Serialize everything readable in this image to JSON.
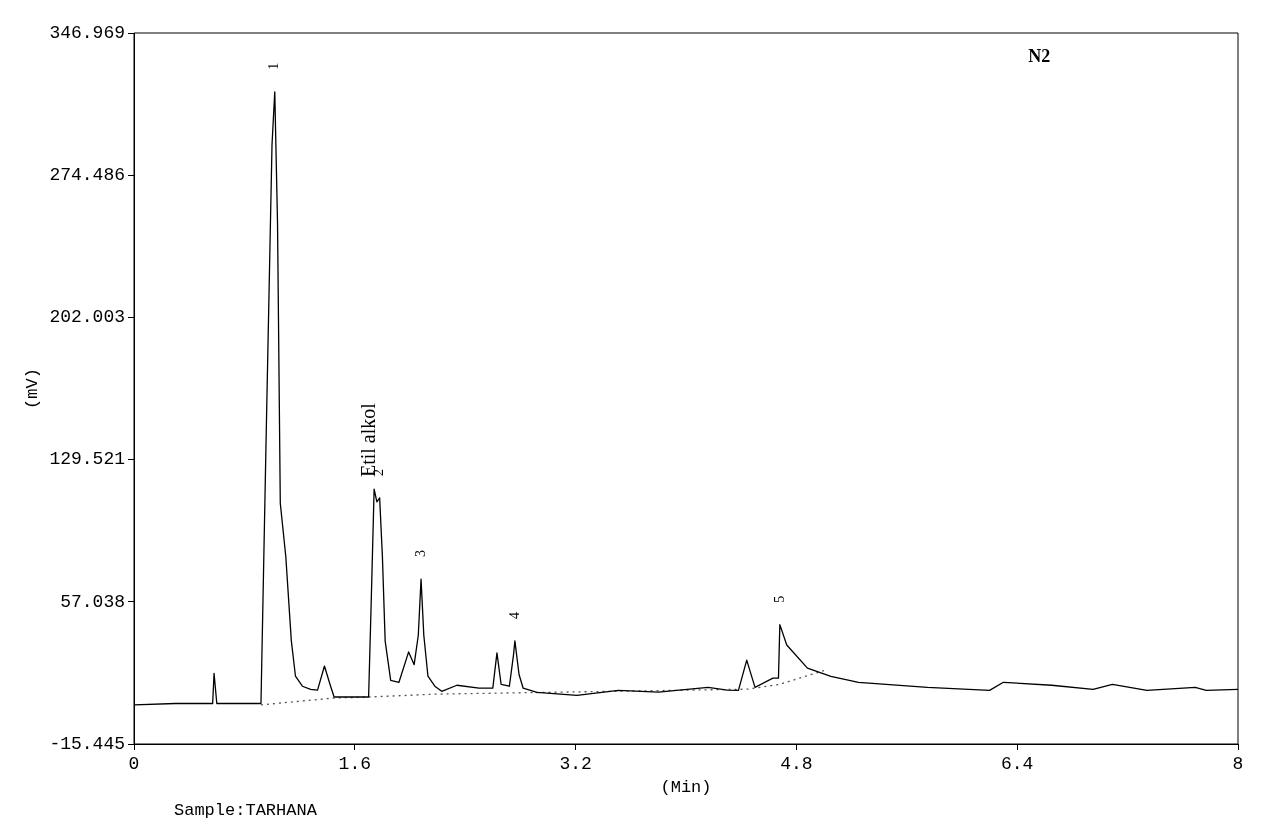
{
  "chart_data": {
    "type": "line",
    "xlabel": "(Min)",
    "ylabel": "(mV)",
    "xlim": [
      0,
      8
    ],
    "xticks": [
      0,
      1.6,
      3.2,
      4.8,
      6.4,
      8
    ],
    "ylim": [
      -15.445,
      346.969
    ],
    "yticks": [
      -15.445,
      57.038,
      129.521,
      202.003,
      274.486,
      346.969
    ],
    "grid": false,
    "legend": false,
    "marker": "none",
    "series": [
      {
        "color": "#000000",
        "line_style": "solid",
        "x": [
          0,
          0.3,
          0.57,
          0.58,
          0.6,
          0.9,
          0.92,
          0.96,
          1.0,
          1.02,
          1.04,
          1.06,
          1.1,
          1.14,
          1.17,
          1.22,
          1.28,
          1.33,
          1.38,
          1.42,
          1.45,
          1.55,
          1.7,
          1.72,
          1.74,
          1.76,
          1.78,
          1.8,
          1.82,
          1.86,
          1.92,
          1.99,
          2.03,
          2.06,
          2.08,
          2.1,
          2.13,
          2.18,
          2.23,
          2.34,
          2.5,
          2.6,
          2.63,
          2.66,
          2.72,
          2.75,
          2.76,
          2.79,
          2.82,
          2.92,
          3.21,
          3.51,
          3.8,
          4.16,
          4.3,
          4.38,
          4.44,
          4.5,
          4.63,
          4.67,
          4.68,
          4.73,
          4.88,
          5.05,
          5.25,
          5.75,
          6.2,
          6.3,
          6.65,
          6.95,
          7.09,
          7.34,
          7.69,
          7.77,
          8.0
        ],
        "values": [
          4.5,
          5.2,
          5.2,
          20.6,
          5.2,
          5.2,
          5.2,
          150,
          290,
          317,
          250,
          107.3,
          80,
          37.1,
          19.1,
          14,
          12.4,
          12,
          24.3,
          15,
          8.5,
          8.5,
          8.5,
          60,
          114.5,
          108,
          110,
          80,
          37,
          17,
          16,
          31.5,
          25,
          40,
          68.6,
          40,
          19.1,
          14,
          11.4,
          14.5,
          13,
          13,
          31,
          15,
          14,
          30,
          37.1,
          20,
          13,
          10.9,
          9.3,
          11.9,
          11,
          13.4,
          12,
          11.9,
          27.3,
          13.4,
          18.1,
          18.1,
          45.4,
          35,
          23.2,
          19,
          16,
          13.4,
          11.9,
          16,
          14.5,
          12.4,
          15,
          11.9,
          13.4,
          11.9,
          12.4
        ]
      },
      {
        "color": "#555555",
        "line_style": "dotted",
        "x": [
          0.92,
          1.45,
          1.7,
          2.2,
          4.45,
          4.68,
          5.0
        ],
        "values": [
          4.5,
          8,
          8.5,
          10,
          12.5,
          15,
          22
        ]
      }
    ],
    "annotations": [
      "N2",
      "Sample:TARHANA",
      {
        "text": "1",
        "x": 1.02,
        "y": 317
      },
      {
        "text": "Etil alkol",
        "x": 1.74,
        "y": 114.5
      },
      {
        "text": "2",
        "x": 1.78,
        "y": 110
      },
      {
        "text": "3",
        "x": 2.08,
        "y": 68.6
      },
      {
        "text": "4",
        "x": 2.76,
        "y": 37.1
      },
      {
        "text": "5",
        "x": 4.68,
        "y": 45.4
      }
    ]
  }
}
